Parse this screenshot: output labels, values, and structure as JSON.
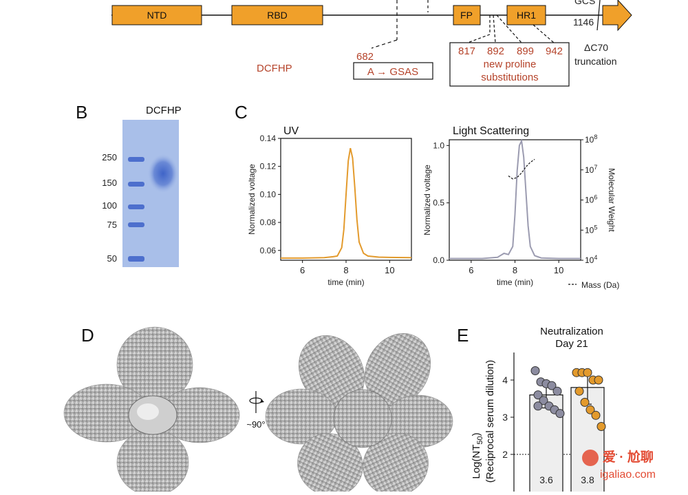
{
  "panel_a": {
    "domains": [
      {
        "label": "NTD"
      },
      {
        "label": "RBD"
      },
      {
        "label": "FP"
      },
      {
        "label": "HR1"
      }
    ],
    "construct_name": "DCFHP",
    "site_682": "682",
    "substitution": "A → GSAS",
    "proline_positions": [
      "817",
      "892",
      "899",
      "942"
    ],
    "proline_text_1": "new proline",
    "proline_text_2": "substitutions",
    "residue_1146": "1146",
    "truncation_1": "ΔC70",
    "truncation_2": "truncation",
    "top_partial": "GCS"
  },
  "panel_b": {
    "letter": "B",
    "gel_title": "DCFHP",
    "ladder_labels": [
      "250",
      "150",
      "100",
      "75",
      "50"
    ]
  },
  "panel_c": {
    "letter": "C",
    "uv_title": "UV",
    "ls_title": "Light Scattering",
    "mass_legend": "Mass (Da)"
  },
  "panel_d": {
    "letter": "D",
    "rotation_label": "~90°"
  },
  "panel_e": {
    "letter": "E",
    "title_1": "Neutralization",
    "title_2": "Day 21",
    "ylabel_1": "Log(NT",
    "ylabel_sub": "50",
    "ylabel_close": ")",
    "ylabel_2": "(Reciprocal serum dilution)"
  },
  "watermark": {
    "text_cn": "爱 · 尬聊",
    "url": "igaliao.com"
  },
  "chart_data": [
    {
      "type": "line",
      "title": "UV",
      "xlabel": "time (min)",
      "ylabel": "Normalized voltage",
      "xlim": [
        5,
        11
      ],
      "ylim": [
        0.053,
        0.14
      ],
      "xticks": [
        "6",
        "8",
        "10"
      ],
      "yticks": [
        "0.06",
        "0.08",
        "0.10",
        "0.12",
        "0.14"
      ],
      "color": "#e39a2c",
      "series": [
        {
          "x": [
            5.0,
            6.0,
            7.0,
            7.4,
            7.6,
            7.8,
            7.9,
            8.0,
            8.1,
            8.2,
            8.3,
            8.4,
            8.5,
            8.6,
            8.8,
            9.0,
            9.5,
            10.0,
            11.0
          ],
          "y": [
            0.0545,
            0.0545,
            0.0548,
            0.0555,
            0.056,
            0.062,
            0.075,
            0.1,
            0.124,
            0.133,
            0.126,
            0.105,
            0.082,
            0.066,
            0.058,
            0.056,
            0.0552,
            0.055,
            0.0548
          ]
        }
      ]
    },
    {
      "type": "line",
      "title": "Light Scattering",
      "xlabel": "time (min)",
      "ylabel": "Normalized voltage",
      "y2label": "Molecular Weight",
      "xlim": [
        5,
        11
      ],
      "ylim": [
        0,
        1.05
      ],
      "y2lim_log10": [
        4,
        8
      ],
      "xticks": [
        "6",
        "8",
        "10"
      ],
      "yticks": [
        "0.0",
        "0.5",
        "1.0"
      ],
      "y2ticks": [
        "10^4",
        "10^5",
        "10^6",
        "10^7",
        "10^8"
      ],
      "series": [
        {
          "name": "",
          "color": "#9b9bb0",
          "x": [
            5.0,
            6.5,
            7.2,
            7.5,
            7.7,
            7.9,
            8.0,
            8.1,
            8.2,
            8.3,
            8.4,
            8.5,
            8.6,
            8.7,
            8.9,
            9.2,
            10.0,
            11.0
          ],
          "y": [
            0.015,
            0.015,
            0.025,
            0.06,
            0.05,
            0.12,
            0.4,
            0.78,
            1.0,
            1.04,
            0.9,
            0.6,
            0.3,
            0.12,
            0.04,
            0.02,
            0.015,
            0.015
          ]
        },
        {
          "name": "Mass (Da)",
          "style": "dashed",
          "color": "#111111",
          "axis": "y2",
          "x": [
            7.7,
            7.9,
            8.1,
            8.3,
            8.5,
            8.7,
            8.9
          ],
          "y_log10": [
            6.8,
            6.7,
            6.75,
            6.9,
            7.1,
            7.25,
            7.35
          ]
        }
      ]
    },
    {
      "type": "bar",
      "title": "Neutralization Day 21",
      "ylabel": "Log(NT50) (Reciprocal serum dilution)",
      "ylim": [
        1,
        4.6
      ],
      "yticks": [
        "1",
        "2",
        "3",
        "4"
      ],
      "reference_line": 2,
      "categories": [
        "",
        ""
      ],
      "values": [
        3.6,
        3.8
      ],
      "value_labels": [
        "3.6",
        "3.8"
      ],
      "bar_fill": "#eeeeee",
      "point_colors": [
        "#8c8ca0",
        "#e39a2c"
      ],
      "points": [
        [
          4.25,
          3.95,
          3.9,
          3.85,
          3.7,
          3.6,
          3.45,
          3.3,
          3.2,
          3.1,
          3.3
        ],
        [
          4.2,
          4.2,
          4.2,
          4.0,
          4.0,
          3.7,
          3.4,
          3.2,
          3.05,
          2.75
        ]
      ],
      "error_sd": [
        0.35,
        0.45
      ]
    }
  ]
}
